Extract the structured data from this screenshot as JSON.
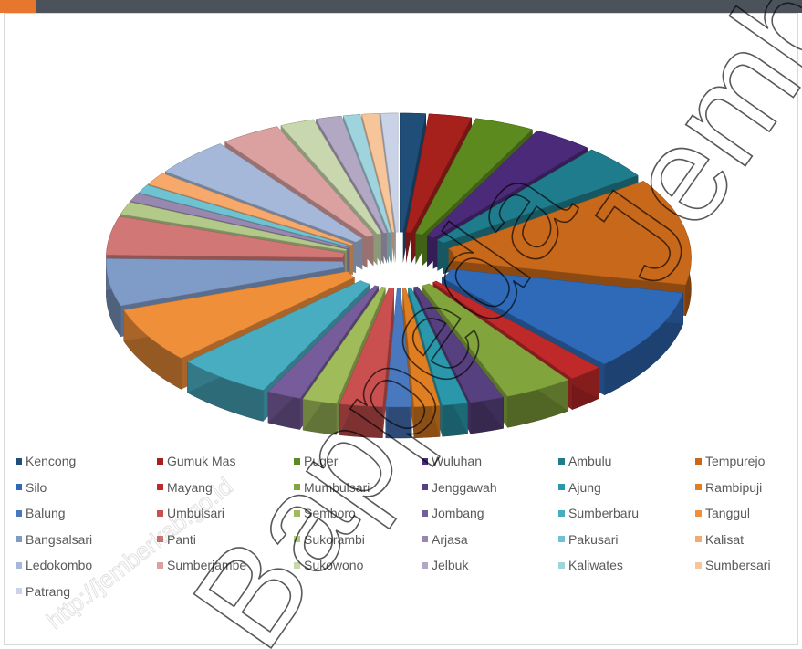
{
  "header": {
    "title": ""
  },
  "chart_data": {
    "type": "pie",
    "style": "3d-exploded",
    "title": "",
    "legend_position": "bottom",
    "categories": [
      "Kencong",
      "Gumuk Mas",
      "Puger",
      "Wuluhan",
      "Ambulu",
      "Tempurejo",
      "Silo",
      "Mayang",
      "Mumbulsari",
      "Jenggawah",
      "Ajung",
      "Rambipuji",
      "Balung",
      "Umbulsari",
      "Semboro",
      "Jombang",
      "Sumberbaru",
      "Tanggul",
      "Bangsalsari",
      "Panti",
      "Sukorambi",
      "Arjasa",
      "Pakusari",
      "Kalisat",
      "Ledokombo",
      "Sumberjambe",
      "Sukowono",
      "Jelbuk",
      "Kaliwates",
      "Sumbersari",
      "Patrang"
    ],
    "values": [
      1.5,
      2.5,
      3.5,
      3.5,
      4.0,
      12.5,
      9.5,
      2.0,
      4.0,
      2.0,
      1.5,
      1.5,
      1.5,
      2.5,
      2.0,
      2.0,
      5.5,
      6.5,
      5.5,
      4.5,
      1.5,
      1.0,
      1.0,
      1.5,
      4.5,
      3.5,
      2.0,
      1.5,
      1.0,
      1.0,
      1.0
    ],
    "colors": [
      "#1f4e79",
      "#a6201c",
      "#5d8a1f",
      "#4b2a7a",
      "#1f7c8c",
      "#c8681a",
      "#2f6ab8",
      "#c0292a",
      "#82a43c",
      "#57407f",
      "#2a97aa",
      "#e07e22",
      "#4a78be",
      "#c9504f",
      "#9fbb5a",
      "#765c9b",
      "#49adc2",
      "#f08f3a",
      "#7f9cc9",
      "#d17877",
      "#b3c98a",
      "#9888b0",
      "#6fc2d1",
      "#f6a96a",
      "#a6b8da",
      "#dba1a0",
      "#c9d7ae",
      "#b3a8c4",
      "#9fd3de",
      "#f7c59a",
      "#c9d2e6"
    ],
    "watermark": "http://jemberkab.go.id  Jember  Bappeda"
  },
  "watermark_parts": [
    "http://jemberkab.go.id",
    "Jember",
    "Bappeda"
  ]
}
